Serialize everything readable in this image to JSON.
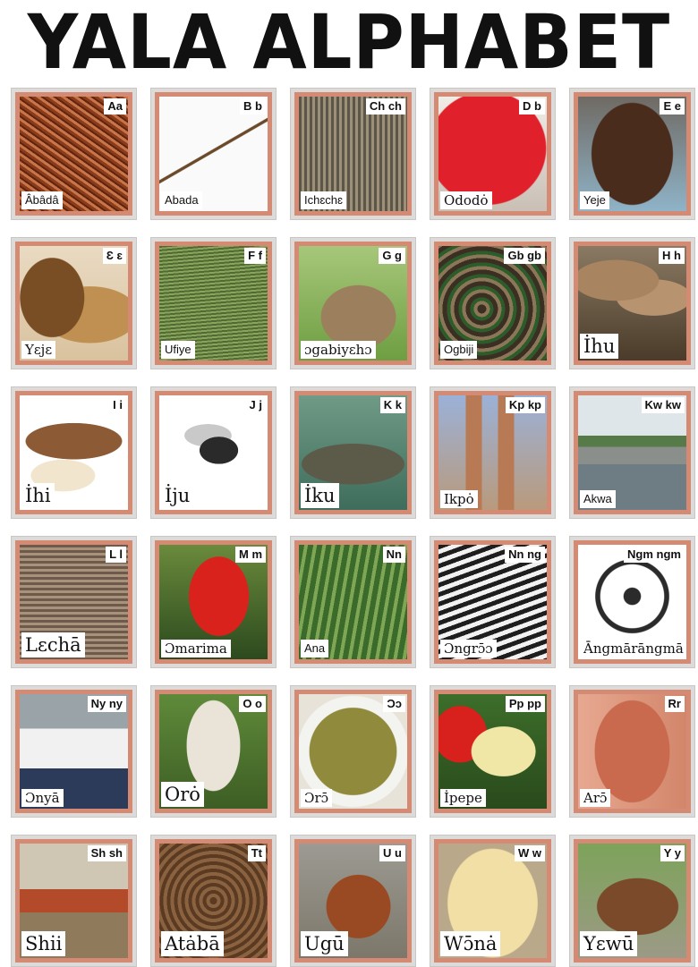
{
  "title": "YALA ALPHABET",
  "cards": [
    {
      "letter": "Aa",
      "word": "Âbâdâ",
      "picture": "dried-shrimp"
    },
    {
      "letter": "B b",
      "word": "Abada",
      "picture": "spear"
    },
    {
      "letter": "Ch ch",
      "word": "Ichɛchɛ",
      "picture": "woven-baskets"
    },
    {
      "letter": "D b",
      "word": "Ododȯ",
      "picture": "red-cap"
    },
    {
      "letter": "E e",
      "word": "Yeje",
      "picture": "child"
    },
    {
      "letter": "Ɛ ɛ",
      "word": "Yɛjɛ",
      "picture": "lion"
    },
    {
      "letter": "F f",
      "word": "Ufiye",
      "picture": "broom-grass"
    },
    {
      "letter": "G g",
      "word": "ɔgabiyɛhɔ",
      "picture": "rabbit"
    },
    {
      "letter": "Gb gb",
      "word": "Ogbiji",
      "picture": "snake"
    },
    {
      "letter": "H h",
      "word": "İhu",
      "picture": "mushrooms"
    },
    {
      "letter": "I i",
      "word": "İhi",
      "picture": "yam"
    },
    {
      "letter": "J j",
      "word": "İju",
      "picture": "fly"
    },
    {
      "letter": "K k",
      "word": "İku",
      "picture": "crocodile"
    },
    {
      "letter": "Kp kp",
      "word": "Ikpȯ",
      "picture": "legs"
    },
    {
      "letter": "Kw kw",
      "word": "Akwa",
      "picture": "bridge"
    },
    {
      "letter": "L l",
      "word": "Lɛchā",
      "picture": "bundle-of-sticks"
    },
    {
      "letter": "M m",
      "word": "Ɔmarima",
      "picture": "red-bird"
    },
    {
      "letter": "Nn",
      "word": "Ana",
      "picture": "cactus"
    },
    {
      "letter": "Nn ng",
      "word": "Ɔngrɔ̄ɔ",
      "picture": "man-with-hat"
    },
    {
      "letter": "Ngm ngm",
      "word": "Āngmārāngmā",
      "picture": "wheel"
    },
    {
      "letter": "Ny ny",
      "word": "Ɔnyā",
      "picture": "women"
    },
    {
      "letter": "O o",
      "word": "Orȯ",
      "picture": "snail-shell"
    },
    {
      "letter": "Ɔɔ",
      "word": "Ɔrɔ̄",
      "picture": "soup"
    },
    {
      "letter": "Pp pp",
      "word": "İpepe",
      "picture": "butterfly"
    },
    {
      "letter": "Rr",
      "word": "Arɔ̄",
      "picture": "ear"
    },
    {
      "letter": "Sh sh",
      "word": "Shi̇i",
      "picture": "market"
    },
    {
      "letter": "Tt",
      "word": "Atȧbā",
      "picture": "coiled-tobacco"
    },
    {
      "letter": "U u",
      "word": "Ugū",
      "picture": "rooster"
    },
    {
      "letter": "W w",
      "word": "Wɔ̄nȧ",
      "picture": "egg"
    },
    {
      "letter": "Y y",
      "word": "Yɛwū",
      "picture": "goat"
    }
  ]
}
